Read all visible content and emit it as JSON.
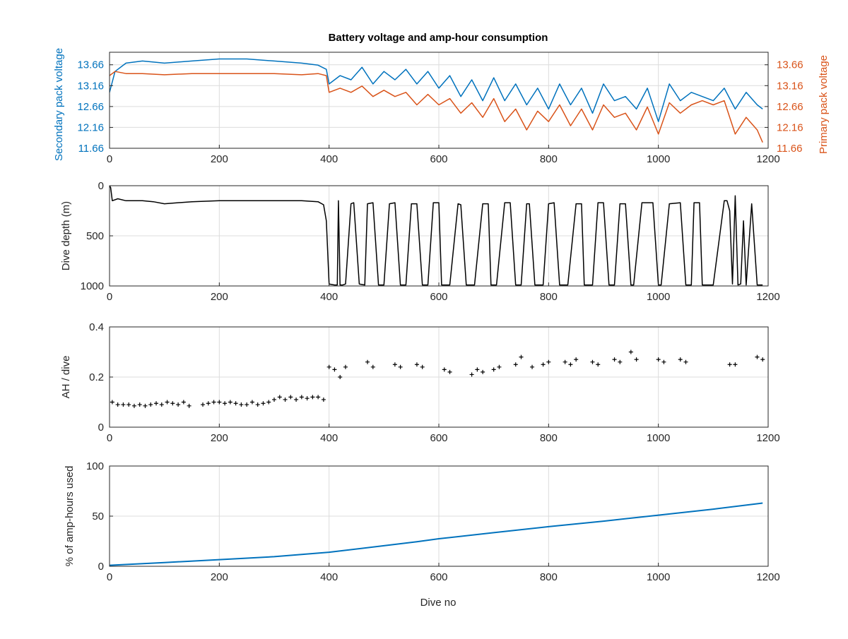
{
  "colors": {
    "secondary": "#0072BD",
    "primary": "#D95319",
    "black": "#000000",
    "grid": "#dcdcdc",
    "tick_text": "#262626"
  },
  "chart_data": [
    {
      "type": "line",
      "title": "Battery voltage and amp-hour consumption",
      "xlabel": "",
      "xlim": [
        0,
        1200
      ],
      "x_ticks": [
        0,
        200,
        400,
        600,
        800,
        1000,
        1200
      ],
      "ylabel_left": "Secondary pack voltage",
      "ylabel_right": "Primary pack voltage",
      "ylim": [
        11.66,
        13.96
      ],
      "y_ticks": [
        11.66,
        12.16,
        12.66,
        13.16,
        13.66
      ],
      "y_tick_labels": [
        "11.66",
        "12.16",
        "12.66",
        "13.16",
        "13.66"
      ],
      "grid": true,
      "series": [
        {
          "name": "Secondary pack voltage",
          "axis": "left",
          "x": [
            0,
            10,
            30,
            60,
            100,
            150,
            200,
            250,
            300,
            350,
            380,
            395,
            400,
            420,
            440,
            460,
            480,
            500,
            520,
            540,
            560,
            580,
            600,
            620,
            640,
            660,
            680,
            700,
            720,
            740,
            760,
            780,
            800,
            820,
            840,
            860,
            880,
            900,
            920,
            940,
            960,
            980,
            1000,
            1020,
            1040,
            1060,
            1080,
            1100,
            1120,
            1140,
            1160,
            1180,
            1190
          ],
          "y": [
            13.0,
            13.5,
            13.7,
            13.75,
            13.7,
            13.75,
            13.8,
            13.8,
            13.75,
            13.7,
            13.65,
            13.55,
            13.2,
            13.4,
            13.3,
            13.6,
            13.2,
            13.5,
            13.3,
            13.55,
            13.2,
            13.5,
            13.1,
            13.4,
            12.9,
            13.3,
            12.8,
            13.35,
            12.8,
            13.2,
            12.7,
            13.1,
            12.6,
            13.2,
            12.7,
            13.1,
            12.5,
            13.2,
            12.8,
            12.9,
            12.6,
            13.1,
            12.3,
            13.2,
            12.8,
            13.0,
            12.9,
            12.8,
            13.1,
            12.6,
            13.0,
            12.7,
            12.6
          ]
        },
        {
          "name": "Primary pack voltage",
          "axis": "right",
          "x": [
            0,
            10,
            30,
            60,
            100,
            150,
            200,
            250,
            300,
            350,
            380,
            395,
            400,
            420,
            440,
            460,
            480,
            500,
            520,
            540,
            560,
            580,
            600,
            620,
            640,
            660,
            680,
            700,
            720,
            740,
            760,
            780,
            800,
            820,
            840,
            860,
            880,
            900,
            920,
            940,
            960,
            980,
            1000,
            1020,
            1040,
            1060,
            1080,
            1100,
            1120,
            1140,
            1160,
            1180,
            1190
          ],
          "y": [
            13.4,
            13.5,
            13.45,
            13.45,
            13.42,
            13.45,
            13.45,
            13.45,
            13.45,
            13.42,
            13.45,
            13.4,
            13.0,
            13.1,
            13.0,
            13.15,
            12.9,
            13.05,
            12.9,
            13.0,
            12.7,
            12.95,
            12.7,
            12.85,
            12.5,
            12.75,
            12.4,
            12.85,
            12.3,
            12.6,
            12.1,
            12.55,
            12.3,
            12.7,
            12.2,
            12.6,
            12.1,
            12.7,
            12.4,
            12.5,
            12.1,
            12.65,
            12.0,
            12.75,
            12.5,
            12.7,
            12.8,
            12.7,
            12.8,
            12.0,
            12.4,
            12.1,
            11.8
          ]
        }
      ]
    },
    {
      "type": "line",
      "xlim": [
        0,
        1200
      ],
      "x_ticks": [
        0,
        200,
        400,
        600,
        800,
        1000,
        1200
      ],
      "ylabel": "Dive depth (m)",
      "ylim": [
        0,
        1000
      ],
      "y_reversed": true,
      "y_ticks": [
        0,
        500,
        1000
      ],
      "grid": true,
      "series": [
        {
          "x": [
            0,
            2,
            5,
            15,
            30,
            60,
            80,
            100,
            150,
            200,
            250,
            300,
            350,
            380,
            390,
            395,
            400,
            410,
            415,
            417,
            420,
            425,
            430,
            440,
            445,
            455,
            465,
            470,
            480,
            490,
            500,
            510,
            520,
            530,
            540,
            550,
            560,
            570,
            580,
            590,
            600,
            605,
            620,
            635,
            640,
            650,
            665,
            680,
            690,
            695,
            705,
            720,
            730,
            740,
            750,
            760,
            765,
            775,
            790,
            800,
            810,
            820,
            835,
            850,
            860,
            865,
            880,
            890,
            900,
            910,
            920,
            930,
            940,
            950,
            955,
            970,
            990,
            1000,
            1005,
            1020,
            1040,
            1050,
            1060,
            1065,
            1075,
            1080,
            1100,
            1120,
            1125,
            1130,
            1135,
            1140,
            1145,
            1150,
            1155,
            1160,
            1170,
            1180,
            1190
          ],
          "y": [
            0,
            20,
            150,
            130,
            150,
            150,
            160,
            180,
            160,
            150,
            150,
            150,
            150,
            160,
            190,
            350,
            980,
            990,
            990,
            150,
            990,
            990,
            980,
            180,
            170,
            980,
            990,
            180,
            170,
            990,
            990,
            180,
            170,
            990,
            990,
            180,
            180,
            990,
            990,
            170,
            170,
            990,
            990,
            180,
            190,
            990,
            990,
            180,
            180,
            990,
            990,
            170,
            170,
            990,
            990,
            180,
            180,
            990,
            990,
            180,
            170,
            990,
            990,
            180,
            180,
            990,
            990,
            170,
            170,
            990,
            990,
            180,
            180,
            990,
            990,
            170,
            170,
            990,
            990,
            180,
            170,
            990,
            990,
            170,
            170,
            990,
            990,
            150,
            150,
            250,
            980,
            100,
            990,
            980,
            350,
            990,
            180,
            990,
            990
          ]
        }
      ]
    },
    {
      "type": "scatter",
      "xlim": [
        0,
        1200
      ],
      "x_ticks": [
        0,
        200,
        400,
        600,
        800,
        1000,
        1200
      ],
      "ylabel": "AH / dive",
      "ylim": [
        0,
        0.4
      ],
      "y_ticks": [
        0,
        0.2,
        0.4
      ],
      "grid": true,
      "series": [
        {
          "x": [
            5,
            15,
            25,
            35,
            45,
            55,
            65,
            75,
            85,
            95,
            105,
            115,
            125,
            135,
            145,
            170,
            180,
            190,
            200,
            210,
            220,
            230,
            240,
            250,
            260,
            270,
            280,
            290,
            300,
            310,
            320,
            330,
            340,
            350,
            360,
            370,
            380,
            390,
            400,
            410,
            420,
            430,
            470,
            480,
            520,
            530,
            560,
            570,
            610,
            620,
            660,
            670,
            680,
            700,
            710,
            740,
            750,
            770,
            790,
            800,
            830,
            840,
            850,
            880,
            890,
            920,
            930,
            950,
            960,
            1000,
            1010,
            1040,
            1050,
            1130,
            1140,
            1180,
            1190
          ],
          "y": [
            0.1,
            0.09,
            0.09,
            0.09,
            0.085,
            0.09,
            0.085,
            0.09,
            0.095,
            0.09,
            0.1,
            0.095,
            0.09,
            0.1,
            0.085,
            0.09,
            0.095,
            0.1,
            0.1,
            0.095,
            0.1,
            0.095,
            0.09,
            0.09,
            0.1,
            0.09,
            0.095,
            0.1,
            0.11,
            0.12,
            0.11,
            0.12,
            0.11,
            0.12,
            0.115,
            0.12,
            0.12,
            0.11,
            0.24,
            0.23,
            0.2,
            0.24,
            0.26,
            0.24,
            0.25,
            0.24,
            0.25,
            0.24,
            0.23,
            0.22,
            0.21,
            0.23,
            0.22,
            0.23,
            0.24,
            0.25,
            0.28,
            0.24,
            0.25,
            0.26,
            0.26,
            0.25,
            0.27,
            0.26,
            0.25,
            0.27,
            0.26,
            0.3,
            0.27,
            0.27,
            0.26,
            0.27,
            0.26,
            0.25,
            0.25,
            0.28,
            0.27
          ]
        }
      ]
    },
    {
      "type": "line",
      "xlabel": "Dive no",
      "xlim": [
        0,
        1200
      ],
      "x_ticks": [
        0,
        200,
        400,
        600,
        800,
        1000,
        1200
      ],
      "ylabel": "% of amp-hours used",
      "ylim": [
        0,
        100
      ],
      "y_ticks": [
        0,
        50,
        100
      ],
      "grid": true,
      "series": [
        {
          "x": [
            0,
            100,
            200,
            300,
            400,
            500,
            560,
            600,
            700,
            800,
            900,
            1000,
            1100,
            1190
          ],
          "y": [
            1,
            3.7,
            6.6,
            9.6,
            14,
            20.5,
            24.5,
            27.5,
            33.5,
            39.5,
            45,
            51,
            57,
            63
          ]
        }
      ]
    }
  ]
}
